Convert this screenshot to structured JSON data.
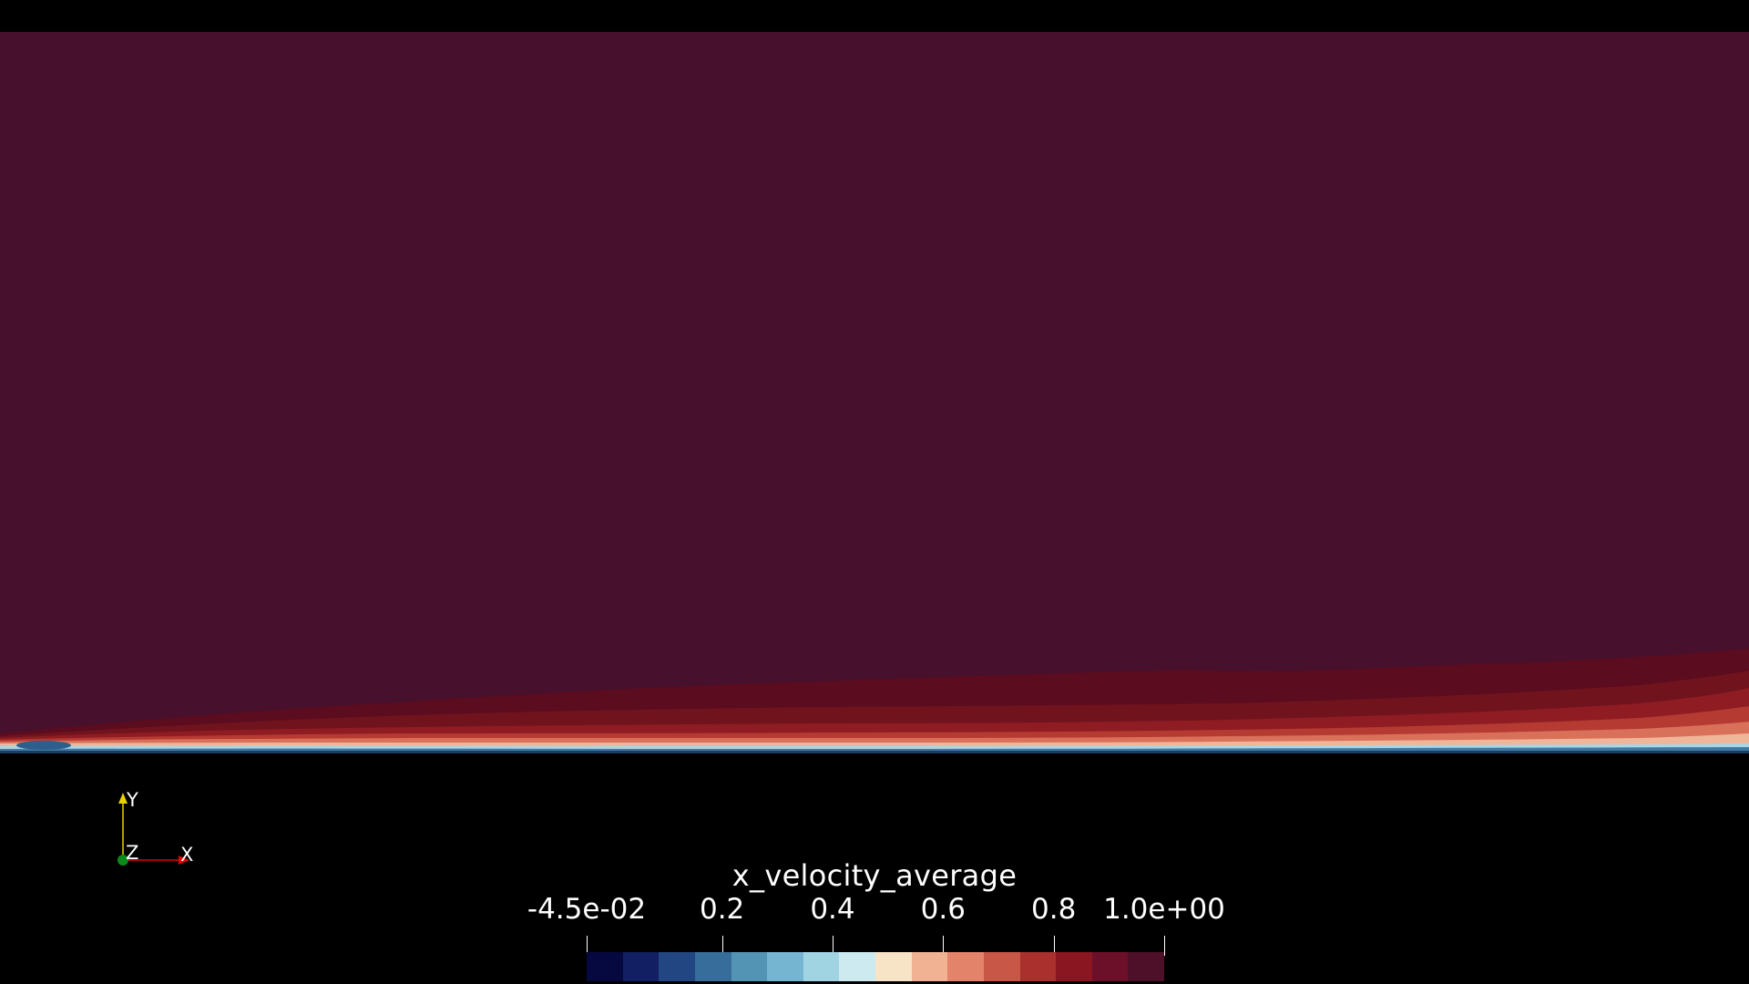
{
  "scene": {
    "background_color": "#000000",
    "field_color_freestream": "#47102c"
  },
  "axes": {
    "y_label": "Y",
    "z_label": "Z",
    "x_label": "X",
    "y_color": "#e8d200",
    "x_color": "#e00000",
    "z_color": "#0a8a1a"
  },
  "legend": {
    "title": "x_velocity_average",
    "tick_labels": [
      "-4.5e-02",
      "0.2",
      "0.4",
      "0.6",
      "0.8",
      "1.0e+00"
    ],
    "tick_values": [
      -0.045,
      0.2,
      0.4,
      0.6,
      0.8,
      1.0
    ],
    "range": [
      -0.045,
      1.0
    ],
    "colors": [
      "#05093f",
      "#121f63",
      "#224682",
      "#376d9a",
      "#5394b5",
      "#75b5d1",
      "#a1d4e3",
      "#cdeaf0",
      "#f7e3c6",
      "#f0b293",
      "#e3836a",
      "#c85747",
      "#a9302d",
      "#8a1622",
      "#6b1028",
      "#4e1029"
    ]
  }
}
